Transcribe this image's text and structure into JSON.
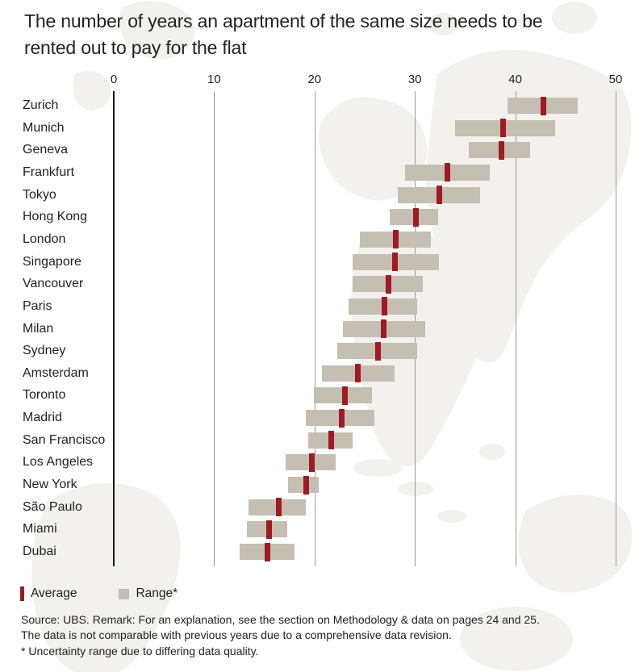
{
  "title": {
    "line1": "The number of years an apartment of the same size needs to be",
    "line2": "rented out to pay for the flat"
  },
  "legend": {
    "average_label": "Average",
    "range_label": "Range*"
  },
  "footer": {
    "line1": "Source: UBS. Remark: For an explanation, see the section on Methodology & data on pages 24 and 25.",
    "line2": "The data is not comparable with previous years due to a comprehensive data revision.",
    "line3": "* Uncertainty range due to differing data quality."
  },
  "colors": {
    "range_bar": "#c4bfb2",
    "average_marker": "#9e1b23",
    "gridline": "#9a9a9a",
    "zero_axis": "#1a1a1a",
    "text": "#262120",
    "watermark": "#f2f1ee"
  },
  "chart_data": {
    "type": "bar",
    "subtype": "horizontal_range_bar",
    "title": "The number of years an apartment of the same size needs to be rented out to pay for the flat",
    "unit": "years",
    "x_axis": {
      "min": 0,
      "max": 50,
      "ticks": [
        0,
        10,
        20,
        30,
        40,
        50
      ],
      "position": "top",
      "gridlines": true
    },
    "legend_position": "bottom-left",
    "categories": [
      "Zurich",
      "Munich",
      "Geneva",
      "Frankfurt",
      "Tokyo",
      "Hong Kong",
      "London",
      "Singapore",
      "Vancouver",
      "Paris",
      "Milan",
      "Sydney",
      "Amsterdam",
      "Toronto",
      "Madrid",
      "San Francisco",
      "Los Angeles",
      "New York",
      "São Paulo",
      "Miami",
      "Dubai"
    ],
    "series": [
      {
        "name": "Average",
        "role": "average",
        "marker": "dark-red-vertical-bar",
        "values": [
          42.8,
          38.8,
          38.6,
          33.2,
          32.4,
          30.1,
          28.1,
          28.0,
          27.4,
          27.0,
          26.9,
          26.3,
          24.3,
          23.0,
          22.7,
          21.7,
          19.7,
          19.2,
          16.4,
          15.5,
          15.3
        ]
      },
      {
        "name": "Range*",
        "role": "range",
        "marker": "gray-bar",
        "values": [
          [
            39.2,
            46.2
          ],
          [
            34.0,
            44.0
          ],
          [
            35.4,
            41.5
          ],
          [
            29.0,
            37.5
          ],
          [
            28.3,
            36.5
          ],
          [
            27.5,
            32.3
          ],
          [
            24.5,
            31.6
          ],
          [
            23.8,
            32.4
          ],
          [
            23.8,
            30.8
          ],
          [
            23.4,
            30.2
          ],
          [
            22.8,
            31.0
          ],
          [
            22.3,
            30.2
          ],
          [
            20.7,
            28.0
          ],
          [
            19.9,
            25.7
          ],
          [
            19.1,
            26.0
          ],
          [
            19.4,
            23.8
          ],
          [
            17.1,
            22.1
          ],
          [
            17.4,
            20.4
          ],
          [
            13.4,
            19.1
          ],
          [
            13.3,
            17.3
          ],
          [
            12.5,
            18.0
          ]
        ]
      }
    ]
  }
}
